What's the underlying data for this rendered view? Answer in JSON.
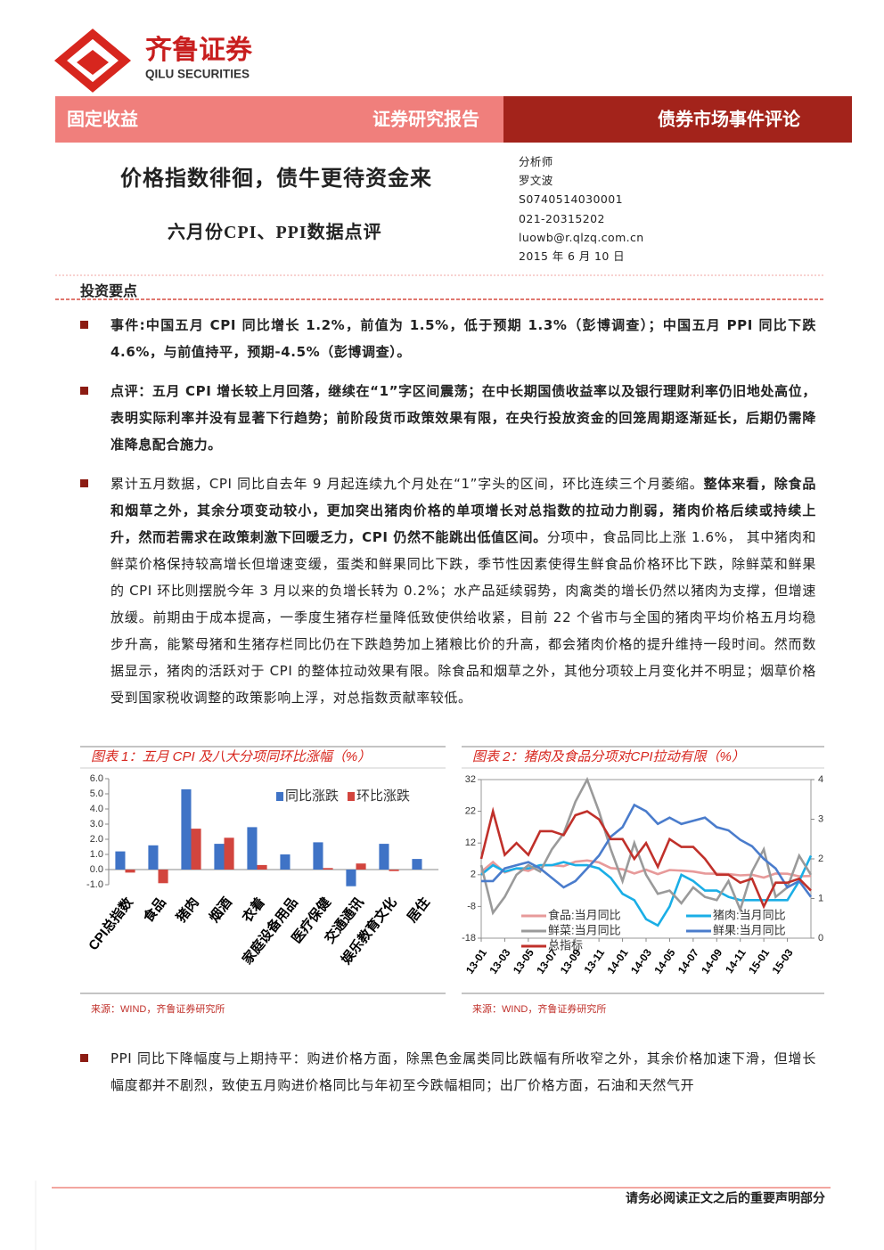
{
  "header": {
    "logo_cn": "齐鲁证券",
    "logo_en": "QILU SECURITIES",
    "category": "固定收益",
    "report_type": "证券研究报告",
    "column": "债券市场事件评论"
  },
  "title": "价格指数徘徊，债牛更待资金来",
  "subtitle": "六月份CPI、PPI数据点评",
  "analyst": [
    "分析师",
    "罗文波",
    "S0740514030001",
    "021-20315202",
    "luowb@r.qlzq.com.cn",
    "2015 年 6 月 10 日"
  ],
  "section": "投资要点",
  "bullets": [
    [
      {
        "text": "事件:中国五月 CPI 同比增长 1.2%，前值为 1.5%，低于预期 1.3%（彭博调查）；中国五月 PPI 同比下跌 4.6%，与前值持平，预期-4.5%（彭博调查）。",
        "bold": true
      }
    ],
    [
      {
        "text": "点评：五月 CPI 增长较上月回落，继续在“1”字区间震荡；在中长期国债收益率以及银行理财利率仍旧地处高位，表明实际利率并没有显著下行趋势；前阶段货币政策效果有限，在央行投放资金的回笼周期逐渐延长，后期仍需降准降息配合施力。",
        "bold": true
      }
    ],
    [
      {
        "text": "累计五月数据，CPI 同比自去年 9 月起连续九个月处在“1”字头的区间，环比连续三个月萎缩。",
        "bold": false
      },
      {
        "text": "整体来看，除食品和烟草之外，其余分项变动较小，更加突出猪肉价格的单项增长对总指数的拉动力削弱，猪肉价格后续或持续上升，然而若需求在政策刺激下回暖乏力，CPI 仍然不能跳出低值区间。",
        "bold": true
      },
      {
        "text": "分项中，食品同比上涨 1.6%， 其中猪肉和鲜菜价格保持较高增长但增速变缓，蛋类和鲜果同比下跌，季节性因素使得生鲜食品价格环比下跌，除鲜菜和鲜果的 CPI 环比则摆脱今年 3 月以来的负增长转为 0.2%；水产品延续弱势，肉禽类的增长仍然以猪肉为支撑，但增速放缓。前期由于成本提高，一季度生猪存栏量降低致使供给收紧，目前 22 个省市与全国的猪肉平均价格五月均稳步升高，能繁母猪和生猪存栏同比仍在下跌趋势加上猪粮比价的升高，都会猪肉价格的提升维持一段时间。然而数据显示，猪肉的活跃对于 CPI 的整体拉动效果有限。除食品和烟草之外，其他分项较上月变化并不明显；烟草价格受到国家税收调整的政策影响上浮，对总指数贡献率较低。",
        "bold": false
      }
    ]
  ],
  "bullets_after": [
    [
      {
        "text": "PPI 同比下降幅度与上期持平：购进价格方面，除黑色金属类同比跌幅有所收窄之外，其余价格加速下滑，但增长幅度都并不剧烈，致使五月购进价格同比与年初至今跌幅相同；出厂价格方面，石油和天然气开",
        "bold": false
      }
    ]
  ],
  "chart_data": [
    {
      "type": "bar",
      "title": "图表 1：五月 CPI 及八大分项同环比涨幅（%）",
      "source": "来源：WIND，齐鲁证券研究所",
      "categories": [
        "CPI总指数",
        "食品",
        "猪肉",
        "烟酒",
        "衣着",
        "家庭设备用品",
        "医疗保健",
        "交通通讯",
        "娱乐教育文化",
        "居住"
      ],
      "series": [
        {
          "name": "同比涨跌",
          "color": "#3f73c6",
          "values": [
            1.2,
            1.6,
            5.3,
            1.7,
            2.8,
            1.0,
            1.8,
            -1.1,
            1.7,
            0.7
          ]
        },
        {
          "name": "环比涨跌",
          "color": "#d2453e",
          "values": [
            -0.2,
            -0.9,
            2.7,
            2.1,
            0.3,
            0.0,
            0.1,
            0.4,
            -0.1,
            0.0
          ]
        }
      ],
      "ylim": [
        -1,
        6
      ],
      "yticks": [
        {
          "value": -1,
          "label": "-1.0"
        },
        {
          "value": 0,
          "label": "0.0"
        },
        {
          "value": 1,
          "label": "1.0"
        },
        {
          "value": 2,
          "label": "2.0"
        },
        {
          "value": 3,
          "label": "3.0"
        },
        {
          "value": 4,
          "label": "4.0"
        },
        {
          "value": 5,
          "label": "5.0"
        },
        {
          "value": 6,
          "label": "6.0"
        }
      ],
      "grid": false,
      "legend": "upper-right"
    },
    {
      "type": "line",
      "title": "图表 2：猪肉及食品分项对CPI拉动有限（%）",
      "source": "来源：WIND，齐鲁证券研究所",
      "categories": [
        "13-01",
        null,
        "13-03",
        null,
        "13-05",
        null,
        "13-07",
        null,
        "13-09",
        null,
        "13-11",
        null,
        "14-01",
        null,
        "14-03",
        null,
        "14-05",
        null,
        "14-07",
        null,
        "14-09",
        null,
        "14-11",
        null,
        "15-01",
        null,
        "15-03",
        null,
        null
      ],
      "series": [
        {
          "name": "食品:当月同比",
          "color": "#e79a9a",
          "values": [
            2.9,
            6.0,
            2.7,
            4.0,
            3.2,
            4.9,
            5.0,
            4.7,
            6.1,
            6.5,
            5.9,
            4.1,
            3.7,
            2.4,
            3.6,
            2.2,
            3.5,
            3.3,
            3.0,
            2.4,
            2.3,
            2.2,
            1.8,
            2.0,
            1.1,
            2.4,
            2.3,
            1.5,
            1.6
          ]
        },
        {
          "name": "猪肉:当月同比",
          "color": "#1aaee6",
          "values": [
            2,
            5,
            3,
            4,
            4,
            5,
            5,
            6,
            5,
            5,
            4,
            1,
            -4,
            -6,
            -12,
            -14,
            -8,
            2,
            0,
            -3,
            -3,
            -5,
            -6,
            -6,
            -6,
            -6,
            -6,
            0,
            8
          ]
        },
        {
          "name": "鲜菜:当月同比",
          "color": "#9a9a9a",
          "values": [
            5,
            -10,
            -5,
            2,
            5,
            3,
            10,
            15,
            25,
            32,
            22,
            10,
            0,
            12,
            2,
            -4,
            -3,
            -7,
            -2,
            -5,
            -6,
            0,
            -9,
            3,
            10,
            -5,
            -2,
            8,
            2
          ]
        },
        {
          "name": "鲜果:当月同比",
          "color": "#4a7ccc",
          "values": [
            0,
            0,
            4,
            5,
            6,
            4,
            1,
            -2,
            0,
            4,
            8,
            14,
            17,
            24,
            22,
            18,
            20,
            18,
            19,
            20,
            17,
            16,
            13,
            11,
            7,
            4,
            -2,
            0,
            -5
          ]
        },
        {
          "name": "总指标",
          "color": "#c0302a",
          "axis": "y2",
          "values": [
            2.0,
            3.2,
            2.1,
            2.4,
            2.1,
            2.7,
            2.7,
            2.6,
            3.1,
            3.2,
            3.0,
            2.5,
            2.5,
            2.0,
            2.4,
            1.8,
            2.5,
            2.3,
            2.3,
            2.0,
            1.6,
            1.6,
            1.4,
            1.5,
            0.8,
            1.4,
            1.4,
            1.5,
            1.2
          ]
        }
      ],
      "ylim": [
        -18,
        32
      ],
      "yticks": [
        -18,
        -8,
        2,
        12,
        22,
        32
      ],
      "y2lim": [
        0,
        4
      ],
      "y2ticks": [
        0,
        1,
        2,
        3,
        4
      ],
      "grid": false,
      "legend": "lower-left"
    }
  ],
  "footer": "请务必阅读正文之后的重要声明部分"
}
